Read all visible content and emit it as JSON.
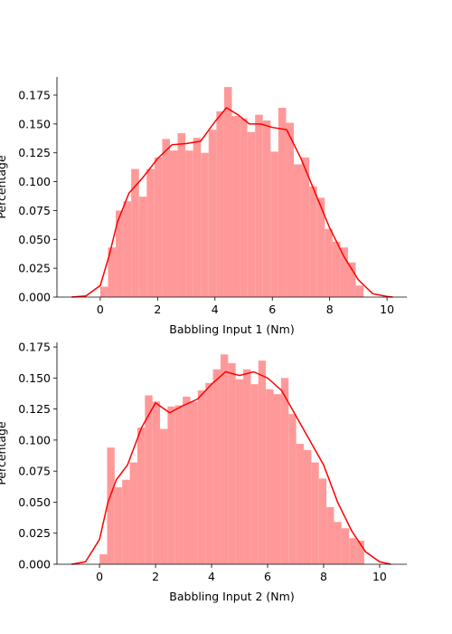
{
  "chart_data": [
    {
      "type": "histogram",
      "xlabel": "Babbling Input 1 (Nm)",
      "ylabel": "Percentage",
      "color": "#ff9999",
      "bins": [
        0,
        0.27,
        0.54,
        0.81,
        1.08,
        1.35,
        1.62,
        1.89,
        2.16,
        2.43,
        2.7,
        2.97,
        3.24,
        3.51,
        3.78,
        4.05,
        4.32,
        4.59,
        4.86,
        5.13,
        5.4,
        5.67,
        5.94,
        6.21,
        6.48,
        6.75,
        7.02,
        7.29,
        7.56,
        7.83,
        8.1,
        8.37,
        8.64,
        8.91,
        9.18
      ],
      "values": [
        0.009,
        0.043,
        0.075,
        0.083,
        0.111,
        0.087,
        0.111,
        0.121,
        0.137,
        0.127,
        0.142,
        0.127,
        0.138,
        0.125,
        0.145,
        0.161,
        0.182,
        0.157,
        0.155,
        0.143,
        0.158,
        0.153,
        0.126,
        0.164,
        0.151,
        0.115,
        0.121,
        0.096,
        0.086,
        0.059,
        0.048,
        0.043,
        0.03,
        0.01
      ],
      "line": {
        "color": "#ff0000",
        "x": [
          -1,
          -0.5,
          0,
          0.3,
          0.6,
          1,
          1.5,
          2,
          2.5,
          3,
          3.5,
          4,
          4.4,
          4.8,
          5.2,
          5.6,
          6,
          6.5,
          7,
          7.5,
          8,
          8.5,
          9,
          9.5,
          10,
          10.2
        ],
        "y": [
          0,
          0.001,
          0.01,
          0.035,
          0.065,
          0.09,
          0.104,
          0.12,
          0.132,
          0.133,
          0.135,
          0.152,
          0.164,
          0.158,
          0.15,
          0.15,
          0.147,
          0.145,
          0.12,
          0.09,
          0.06,
          0.035,
          0.015,
          0.003,
          0.0005,
          0
        ]
      },
      "xlim": [
        -1.51,
        10.69
      ],
      "ylim": [
        0,
        0.1907
      ],
      "xticks": [
        0,
        2,
        4,
        6,
        8,
        10
      ],
      "yticks": [
        {
          "value": 0,
          "label": "0.000"
        },
        {
          "value": 0.025,
          "label": "0.025"
        },
        {
          "value": 0.05,
          "label": "0.050"
        },
        {
          "value": 0.075,
          "label": "0.075"
        },
        {
          "value": 0.1,
          "label": "0.100"
        },
        {
          "value": 0.125,
          "label": "0.125"
        },
        {
          "value": 0.15,
          "label": "0.150"
        },
        {
          "value": 0.175,
          "label": "0.175"
        }
      ]
    },
    {
      "type": "histogram",
      "xlabel": "Babbling Input 2 (Nm)",
      "ylabel": "Percentage",
      "color": "#ff9999",
      "bins": [
        0,
        0.27,
        0.54,
        0.81,
        1.08,
        1.35,
        1.62,
        1.89,
        2.16,
        2.43,
        2.7,
        2.97,
        3.24,
        3.51,
        3.78,
        4.05,
        4.32,
        4.59,
        4.86,
        5.13,
        5.4,
        5.67,
        5.94,
        6.21,
        6.48,
        6.75,
        7.02,
        7.29,
        7.56,
        7.83,
        8.1,
        8.37,
        8.64,
        8.91,
        9.18,
        9.45
      ],
      "values": [
        0.008,
        0.094,
        0.062,
        0.068,
        0.082,
        0.11,
        0.136,
        0.131,
        0.109,
        0.127,
        0.128,
        0.135,
        0.131,
        0.14,
        0.146,
        0.157,
        0.169,
        0.162,
        0.149,
        0.157,
        0.145,
        0.164,
        0.141,
        0.137,
        0.15,
        0.121,
        0.097,
        0.092,
        0.082,
        0.069,
        0.046,
        0.034,
        0.029,
        0.021,
        0.019
      ],
      "line": {
        "color": "#ff0000",
        "x": [
          -1,
          -0.5,
          0,
          0.3,
          0.6,
          1,
          1.5,
          2,
          2.5,
          3,
          3.5,
          4,
          4.5,
          5,
          5.5,
          6,
          6.5,
          7,
          7.5,
          8,
          8.5,
          9,
          9.5,
          10,
          10.4
        ],
        "y": [
          0,
          0.002,
          0.02,
          0.05,
          0.068,
          0.08,
          0.11,
          0.13,
          0.122,
          0.128,
          0.133,
          0.145,
          0.155,
          0.152,
          0.155,
          0.15,
          0.14,
          0.12,
          0.1,
          0.08,
          0.05,
          0.027,
          0.01,
          0.002,
          0
        ]
      },
      "xlim": [
        -1.52,
        10.97
      ],
      "ylim": [
        0,
        0.1787
      ],
      "xticks": [
        0,
        2,
        4,
        6,
        8,
        10
      ],
      "yticks": [
        {
          "value": 0,
          "label": "0.000"
        },
        {
          "value": 0.025,
          "label": "0.025"
        },
        {
          "value": 0.05,
          "label": "0.050"
        },
        {
          "value": 0.075,
          "label": "0.075"
        },
        {
          "value": 0.1,
          "label": "0.100"
        },
        {
          "value": 0.125,
          "label": "0.125"
        },
        {
          "value": 0.15,
          "label": "0.150"
        },
        {
          "value": 0.175,
          "label": "0.175"
        }
      ]
    }
  ]
}
